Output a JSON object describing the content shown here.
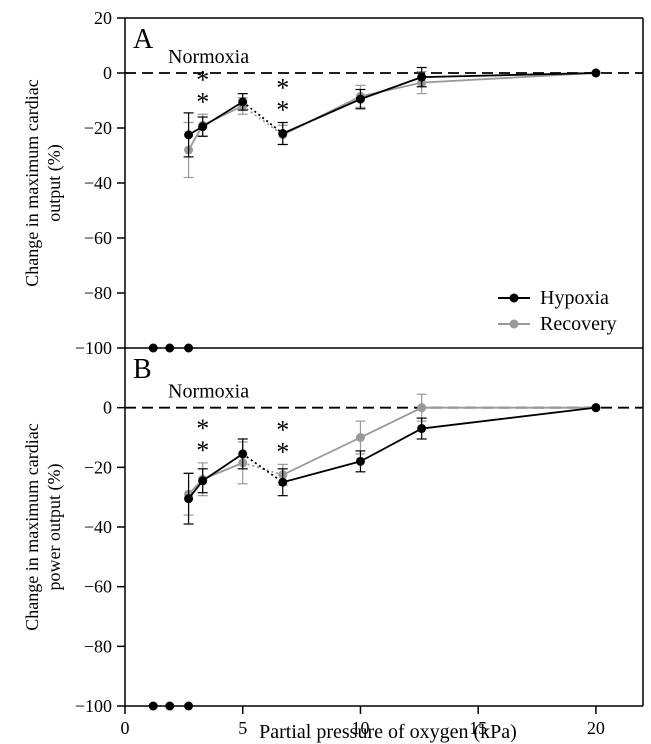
{
  "chart_data": [
    {
      "type": "line",
      "panel_label": "A",
      "ylabel_lines": [
        "Change in maximum cardiac",
        "output (%)"
      ],
      "xlim": [
        0,
        22
      ],
      "ylim": [
        -100,
        20
      ],
      "yticks": [
        20,
        0,
        -20,
        -40,
        -60,
        -80,
        -100
      ],
      "reference_line": {
        "y": 0,
        "label": "Normoxia"
      },
      "legend": {
        "position": "bottom-right",
        "entries": [
          "Hypoxia",
          "Recovery"
        ]
      },
      "series": [
        {
          "name": "Hypoxia",
          "color": "#000000",
          "x": [
            2.7,
            3.3,
            5.0,
            6.7,
            10.0,
            12.6,
            20.0
          ],
          "y": [
            -22.5,
            -19.5,
            -10.5,
            -22.0,
            -9.5,
            -1.5,
            0.0
          ],
          "err": [
            8.0,
            3.5,
            3.0,
            4.0,
            3.5,
            3.5,
            0.0
          ],
          "segments": [
            "solid",
            "solid",
            "dotted",
            "solid",
            "solid",
            "solid"
          ]
        },
        {
          "name": "Recovery",
          "color": "#999999",
          "x": [
            2.7,
            3.3,
            5.0,
            6.7,
            10.0,
            12.6,
            20.0
          ],
          "y": [
            -28.0,
            -19.0,
            -12.0,
            -22.5,
            -8.5,
            -3.5,
            0.0
          ],
          "err": [
            10.0,
            4.0,
            3.0,
            3.5,
            4.0,
            4.0,
            0.0
          ],
          "segments": [
            "solid",
            "solid",
            "dotted",
            "solid",
            "solid",
            "solid"
          ]
        }
      ],
      "significance_marks": [
        {
          "x": 3.3,
          "symbol": "*",
          "colors": [
            "#000000",
            "#999999"
          ]
        },
        {
          "x": 6.7,
          "symbol": "*",
          "colors": [
            "#000000",
            "#999999"
          ]
        }
      ],
      "axis_points": {
        "x": [
          1.2,
          1.9,
          2.7
        ],
        "y": -100
      }
    },
    {
      "type": "line",
      "panel_label": "B",
      "ylabel_lines": [
        "Change in maximum cardiac",
        "power output (%)"
      ],
      "xlabel": "Partial pressure of oxygen (kPa)",
      "xlim": [
        0,
        22
      ],
      "ylim": [
        -100,
        20
      ],
      "xticks": [
        0,
        5,
        10,
        15,
        20
      ],
      "yticks": [
        0,
        -20,
        -40,
        -60,
        -80,
        -100
      ],
      "reference_line": {
        "y": 0,
        "label": "Normoxia"
      },
      "series": [
        {
          "name": "Hypoxia",
          "color": "#000000",
          "x": [
            2.7,
            3.3,
            5.0,
            6.7,
            10.0,
            12.6,
            20.0
          ],
          "y": [
            -30.5,
            -24.5,
            -15.5,
            -25.0,
            -18.0,
            -7.0,
            0.0
          ],
          "err": [
            8.5,
            4.0,
            5.0,
            4.5,
            3.5,
            3.5,
            0.0
          ],
          "segments": [
            "solid",
            "solid",
            "dotted",
            "solid",
            "solid",
            "solid"
          ]
        },
        {
          "name": "Recovery",
          "color": "#999999",
          "x": [
            2.7,
            3.3,
            5.0,
            6.7,
            10.0,
            12.6,
            20.0
          ],
          "y": [
            -29.0,
            -24.0,
            -18.5,
            -22.5,
            -10.0,
            0.0,
            0.0
          ],
          "err": [
            7.0,
            5.5,
            7.0,
            3.5,
            5.5,
            4.5,
            0.0
          ],
          "segments": [
            "solid",
            "solid",
            "dotted",
            "solid",
            "solid",
            "solid"
          ]
        }
      ],
      "significance_marks": [
        {
          "x": 3.3,
          "symbol": "*",
          "colors": [
            "#000000",
            "#999999"
          ]
        },
        {
          "x": 6.7,
          "symbol": "*",
          "colors": [
            "#000000",
            "#999999"
          ]
        }
      ],
      "axis_points": {
        "x": [
          1.2,
          1.9,
          2.7
        ],
        "y": -100
      }
    }
  ]
}
